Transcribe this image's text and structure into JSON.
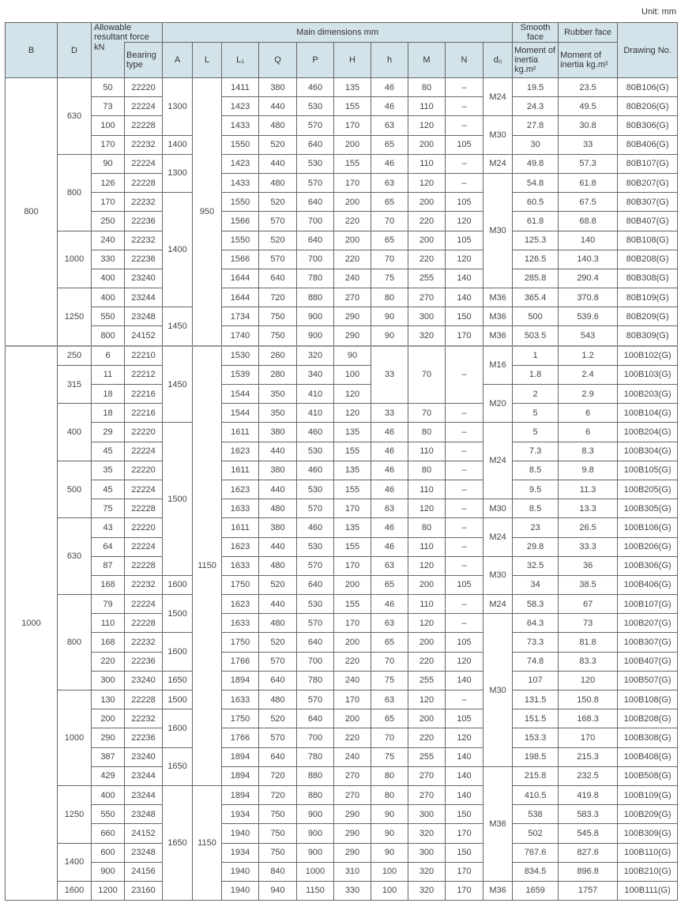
{
  "unit_label": "Unit: mm",
  "header": {
    "B": "B",
    "D": "D",
    "allowable": "Allowable resultant force",
    "kN": "kN",
    "bearing_type": "Bearing type",
    "main_dimensions": "Main dimensions mm",
    "smooth_face": "Smooth face",
    "rubber_face": "Rubber face",
    "drawing_no": "Drawing No.",
    "dims": [
      "A",
      "L",
      "L₁",
      "Q",
      "P",
      "H",
      "h",
      "M",
      "N",
      "d₀"
    ],
    "smooth_moment": "Moment of inertia kg.m²",
    "rubber_moment": "Moment of inertia kg.m²"
  },
  "colors": {
    "header_bg": "#d3e3ea",
    "border": "#666666"
  },
  "table": {
    "section_starts": [
      0,
      14
    ],
    "rows": [
      [
        [
          "800",
          14
        ],
        [
          "630",
          4
        ],
        "50",
        "22220",
        [
          "1300",
          3
        ],
        [
          "950",
          14
        ],
        "1411",
        "380",
        "460",
        "135",
        "46",
        "80",
        "–",
        [
          "M24",
          2
        ],
        "19.5",
        "23.5",
        "80B106(G)"
      ],
      [
        "73",
        "22224",
        "1423",
        "440",
        "530",
        "155",
        "46",
        "110",
        "–",
        "24.3",
        "49.5",
        "80B206(G)"
      ],
      [
        "100",
        "22228",
        "1433",
        "480",
        "570",
        "170",
        "63",
        "120",
        "–",
        [
          "M30",
          2
        ],
        "27.8",
        "30.8",
        "80B306(G)"
      ],
      [
        "170",
        "22232",
        "1400",
        "1550",
        "520",
        "640",
        "200",
        "65",
        "200",
        "105",
        "30",
        "33",
        "80B406(G)"
      ],
      [
        [
          "800",
          4
        ],
        "90",
        "22224",
        [
          "1300",
          2
        ],
        "1423",
        "440",
        "530",
        "155",
        "46",
        "110",
        "–",
        "M24",
        "49.8",
        "57.3",
        "80B107(G)"
      ],
      [
        "126",
        "22228",
        "1433",
        "480",
        "570",
        "170",
        "63",
        "120",
        "–",
        [
          "M30",
          6
        ],
        "54.8",
        "61.8",
        "80B207(G)"
      ],
      [
        "170",
        "22232",
        [
          "1400",
          6
        ],
        "1550",
        "520",
        "640",
        "200",
        "65",
        "200",
        "105",
        "60.5",
        "67.5",
        "80B307(G)"
      ],
      [
        "250",
        "22236",
        "1566",
        "570",
        "700",
        "220",
        "70",
        "220",
        "120",
        "61.8",
        "68.8",
        "80B407(G)"
      ],
      [
        [
          "1000",
          3
        ],
        "240",
        "22232",
        "1550",
        "520",
        "640",
        "200",
        "65",
        "200",
        "105",
        "125.3",
        "140",
        "80B108(G)"
      ],
      [
        "330",
        "22236",
        "1566",
        "570",
        "700",
        "220",
        "70",
        "220",
        "120",
        "126.5",
        "140.3",
        "80B208(G)"
      ],
      [
        "400",
        "23240",
        "1644",
        "640",
        "780",
        "240",
        "75",
        "255",
        "140",
        "285.8",
        "290.4",
        "80B308(G)"
      ],
      [
        [
          "1250",
          3
        ],
        "400",
        "23244",
        "1644",
        "720",
        "880",
        "270",
        "80",
        "270",
        "140",
        "M36",
        "365.4",
        "370.8",
        "80B109(G)"
      ],
      [
        "550",
        "23248",
        [
          "1450",
          2
        ],
        "1734",
        "750",
        "900",
        "290",
        "90",
        "300",
        "150",
        "M36",
        "500",
        "539.6",
        "80B209(G)"
      ],
      [
        "800",
        "24152",
        "1740",
        "750",
        "900",
        "290",
        "90",
        "320",
        "170",
        "M36",
        "503.5",
        "543",
        "80B309(G)"
      ],
      [
        [
          "1000",
          29
        ],
        "250",
        "6",
        "22210",
        [
          "1450",
          4
        ],
        [
          "1150",
          23
        ],
        "1530",
        "260",
        "320",
        "90",
        [
          "33",
          3
        ],
        [
          "70",
          3
        ],
        [
          "–",
          3
        ],
        [
          "M16",
          2
        ],
        "1",
        "1.2",
        "100B102(G)"
      ],
      [
        [
          "315",
          2
        ],
        "11",
        "22212",
        "1539",
        "280",
        "340",
        "100",
        "1.8",
        "2.4",
        "100B103(G)"
      ],
      [
        "18",
        "22216",
        "1544",
        "350",
        "410",
        "120",
        [
          "M20",
          2
        ],
        "2",
        "2.9",
        "100B203(G)"
      ],
      [
        [
          "400",
          3
        ],
        "18",
        "22216",
        "1544",
        "350",
        "410",
        "120",
        "33",
        "70",
        "–",
        "5",
        "6",
        "100B104(G)"
      ],
      [
        "29",
        "22220",
        [
          "1500",
          8
        ],
        "1611",
        "380",
        "460",
        "135",
        "46",
        "80",
        "–",
        [
          "M24",
          4
        ],
        "5",
        "6",
        "100B204(G)"
      ],
      [
        "45",
        "22224",
        "1623",
        "440",
        "530",
        "155",
        "46",
        "110",
        "–",
        "7.3",
        "8.3",
        "100B304(G)"
      ],
      [
        [
          "500",
          3
        ],
        "35",
        "22220",
        "1611",
        "380",
        "460",
        "135",
        "46",
        "80",
        "–",
        "8.5",
        "9.8",
        "100B105(G)"
      ],
      [
        "45",
        "22224",
        "1623",
        "440",
        "530",
        "155",
        "46",
        "110",
        "–",
        "9.5",
        "11.3",
        "100B205(G)"
      ],
      [
        "75",
        "22228",
        "1633",
        "480",
        "570",
        "170",
        "63",
        "120",
        "–",
        "M30",
        "8.5",
        "13.3",
        "100B305(G)"
      ],
      [
        [
          "630",
          4
        ],
        "43",
        "22220",
        "1611",
        "380",
        "460",
        "135",
        "46",
        "80",
        "–",
        [
          "M24",
          2
        ],
        "23",
        "26.5",
        "100B106(G)"
      ],
      [
        "64",
        "22224",
        "1623",
        "440",
        "530",
        "155",
        "46",
        "110",
        "–",
        "29.8",
        "33.3",
        "100B206(G)"
      ],
      [
        "87",
        "22228",
        "1633",
        "480",
        "570",
        "170",
        "63",
        "120",
        "–",
        [
          "M30",
          2
        ],
        "32.5",
        "36",
        "100B306(G)"
      ],
      [
        "168",
        "22232",
        "1600",
        "1750",
        "520",
        "640",
        "200",
        "65",
        "200",
        "105",
        "34",
        "38.5",
        "100B406(G)"
      ],
      [
        [
          "800",
          5
        ],
        "79",
        "22224",
        [
          "1500",
          2
        ],
        "1623",
        "440",
        "530",
        "155",
        "46",
        "110",
        "–",
        "M24",
        "58.3",
        "67",
        "100B107(G)"
      ],
      [
        "110",
        "22228",
        "1633",
        "480",
        "570",
        "170",
        "63",
        "120",
        "–",
        [
          "M30",
          8
        ],
        "64.3",
        "73",
        "100B207(G)"
      ],
      [
        "168",
        "22232",
        [
          "1600",
          2
        ],
        "1750",
        "520",
        "640",
        "200",
        "65",
        "200",
        "105",
        "73.3",
        "81.8",
        "100B307(G)"
      ],
      [
        "220",
        "22236",
        "1766",
        "570",
        "700",
        "220",
        "70",
        "220",
        "120",
        "74.8",
        "83.3",
        "100B407(G)"
      ],
      [
        "300",
        "23240",
        "1650",
        "1894",
        "640",
        "780",
        "240",
        "75",
        "255",
        "140",
        "107",
        "120",
        "100B507(G)"
      ],
      [
        [
          "1000",
          5
        ],
        "130",
        "22228",
        "1500",
        "1633",
        "480",
        "570",
        "170",
        "63",
        "120",
        "–",
        "131.5",
        "150.8",
        "100B108(G)"
      ],
      [
        "200",
        "22232",
        [
          "1600",
          2
        ],
        "1750",
        "520",
        "640",
        "200",
        "65",
        "200",
        "105",
        "151.5",
        "168.3",
        "100B208(G)"
      ],
      [
        "290",
        "22236",
        "1766",
        "570",
        "700",
        "220",
        "70",
        "220",
        "120",
        "153.3",
        "170",
        "100B308(G)"
      ],
      [
        "387",
        "23240",
        [
          "1650",
          2
        ],
        "1894",
        "640",
        "780",
        "240",
        "75",
        "255",
        "140",
        "198.5",
        "215.3",
        "100B408(G)"
      ],
      [
        "429",
        "23244",
        "1894",
        "720",
        "880",
        "270",
        "80",
        "270",
        "140",
        [
          "M36",
          6
        ],
        "215.8",
        "232.5",
        "100B508(G)"
      ],
      [
        [
          "1250",
          3
        ],
        "400",
        "23244",
        [
          "1650",
          6
        ],
        [
          "1150",
          6
        ],
        "1894",
        "720",
        "880",
        "270",
        "80",
        "270",
        "140",
        "410.5",
        "419.8",
        "100B109(G)"
      ],
      [
        "550",
        "23248",
        "1934",
        "750",
        "900",
        "290",
        "90",
        "300",
        "150",
        "538",
        "583.3",
        "100B209(G)"
      ],
      [
        "660",
        "24152",
        "1940",
        "750",
        "900",
        "290",
        "90",
        "320",
        "170",
        "502",
        "545.8",
        "100B309(G)"
      ],
      [
        [
          "1400",
          2
        ],
        "600",
        "23248",
        "1934",
        "750",
        "900",
        "290",
        "90",
        "300",
        "150",
        "767.6",
        "827.6",
        "100B110(G)"
      ],
      [
        "900",
        "24156",
        "1940",
        "840",
        "1000",
        "310",
        "100",
        "320",
        "170",
        "834.5",
        "896.8",
        "100B210(G)"
      ],
      [
        "1600",
        "1200",
        "23160",
        "1940",
        "940",
        "1150",
        "330",
        "100",
        "320",
        "170",
        "M36",
        "1659",
        "1757",
        "100B111(G)"
      ]
    ]
  }
}
